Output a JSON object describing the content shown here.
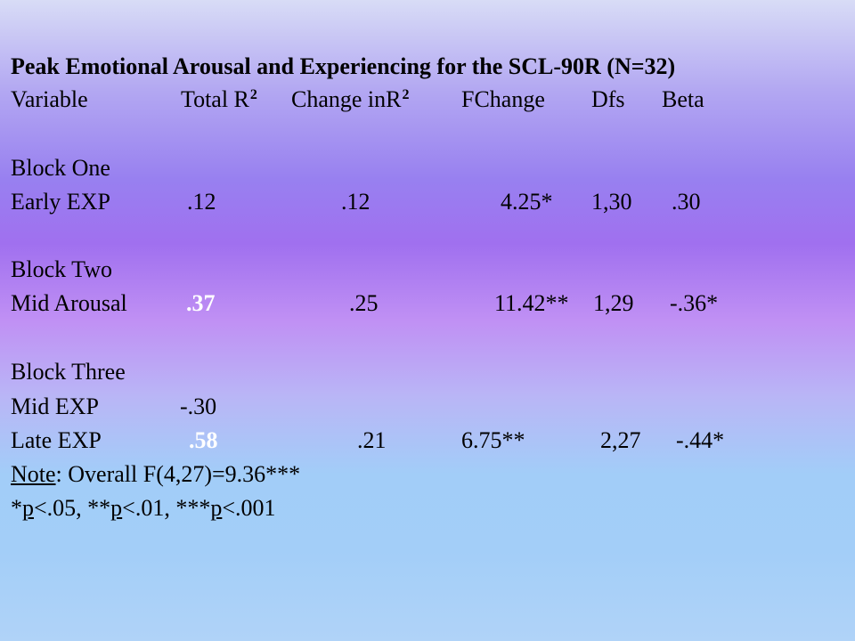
{
  "title": "Peak Emotional Arousal and Experiencing for the SCL-90R (N=32)",
  "header": {
    "variable": "Variable",
    "total_r": "Total R",
    "total_r_sup": "2",
    "change_in": "Change  inR",
    "change_sup": "2",
    "fchange": "FChange",
    "dfs": "Dfs",
    "beta": "Beta"
  },
  "blocks": [
    {
      "label": "Block One",
      "rows": [
        {
          "variable": "Early EXP",
          "total_r2": ".12",
          "change_r2": ".12",
          "fchange": "4.25*",
          "dfs": "1,30",
          "beta": ".30"
        }
      ]
    },
    {
      "label": "Block Two",
      "rows": [
        {
          "variable": "Mid Arousal",
          "total_r2": ".37",
          "change_r2": ".25",
          "fchange": "11.42**",
          "dfs": "1,29",
          "beta": "-.36*"
        }
      ]
    },
    {
      "label": "Block Three",
      "rows": [
        {
          "variable": "Mid EXP",
          "total_r2": "-.30"
        },
        {
          "variable": "Late EXP",
          "total_r2": ".58",
          "change_r2": ".21",
          "fchange": "6.75**",
          "dfs": "2,27",
          "beta": "-.44*"
        }
      ]
    }
  ],
  "note": {
    "label": "Note",
    "text": ": Overall F(4,27)=9.36***"
  },
  "significance": {
    "star1": "*",
    "p1": "p",
    "t1": "<.05, **",
    "p2": "p",
    "t2": "<.01, ***",
    "p3": "p",
    "t3": "<.001"
  },
  "colors": {
    "highlight": "#ffffff",
    "text": "#000000"
  }
}
